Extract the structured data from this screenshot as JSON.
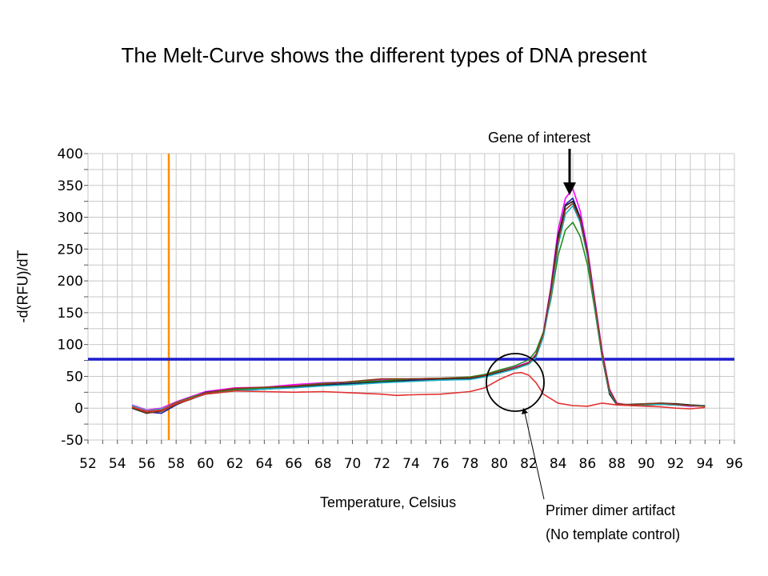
{
  "slide": {
    "title": "The Melt-Curve shows the different types of DNA present"
  },
  "annotations": {
    "gene_of_interest": "Gene of interest",
    "primer_dimer_line1": "Primer dimer artifact",
    "primer_dimer_line2": "(No template control)"
  },
  "colors": {
    "threshold": "#1f1fd0",
    "marker": "#ff8c00",
    "grid": "#c8c8c8",
    "ntc": "#e23030"
  },
  "chart_data": {
    "type": "line",
    "xlabel": "Temperature, Celsius",
    "ylabel": "-d(RFU)/dT",
    "xlim": [
      52,
      96
    ],
    "ylim": [
      -50,
      400
    ],
    "xticks": [
      52,
      54,
      56,
      58,
      60,
      62,
      64,
      66,
      68,
      70,
      72,
      74,
      76,
      78,
      80,
      82,
      84,
      86,
      88,
      90,
      92,
      94,
      96
    ],
    "yticks": [
      400,
      350,
      300,
      250,
      200,
      150,
      100,
      50,
      0,
      -50
    ],
    "grid": true,
    "threshold_y": 77,
    "marker_x": 57.5,
    "series": [
      {
        "color": "#ff00ff",
        "x": [
          55,
          56,
          57,
          58,
          59,
          60,
          62,
          64,
          66,
          68,
          70,
          72,
          74,
          76,
          78,
          79,
          80,
          81,
          82,
          82.5,
          83,
          83.5,
          84,
          84.5,
          85,
          85.5,
          86,
          86.5,
          87,
          87.5,
          88,
          89,
          90,
          91,
          92,
          93,
          94
        ],
        "y": [
          5,
          -3,
          0,
          10,
          18,
          26,
          32,
          33,
          37,
          40,
          41,
          44,
          45,
          46,
          48,
          52,
          58,
          64,
          72,
          85,
          120,
          190,
          280,
          330,
          345,
          310,
          250,
          170,
          90,
          30,
          8,
          4,
          5,
          6,
          5,
          3,
          4
        ]
      },
      {
        "color": "#1f1fa0",
        "x": [
          55,
          56,
          57,
          58,
          59,
          60,
          62,
          64,
          66,
          68,
          70,
          72,
          74,
          76,
          78,
          79,
          80,
          81,
          82,
          82.5,
          83,
          83.5,
          84,
          84.5,
          85,
          85.5,
          86,
          86.5,
          87,
          87.5,
          88,
          89,
          90,
          91,
          92,
          93,
          94
        ],
        "y": [
          3,
          -6,
          -8,
          5,
          15,
          25,
          30,
          31,
          34,
          37,
          39,
          41,
          44,
          44,
          46,
          50,
          56,
          62,
          70,
          82,
          115,
          180,
          265,
          320,
          330,
          300,
          245,
          165,
          85,
          25,
          6,
          5,
          6,
          7,
          6,
          4,
          4
        ]
      },
      {
        "color": "#1a1a1a",
        "x": [
          55,
          56,
          57,
          58,
          59,
          60,
          62,
          64,
          66,
          68,
          70,
          72,
          74,
          76,
          78,
          79,
          80,
          81,
          82,
          82.5,
          83,
          83.5,
          84,
          84.5,
          85,
          85.5,
          86,
          86.5,
          87,
          87.5,
          88,
          89,
          90,
          91,
          92,
          93,
          94
        ],
        "y": [
          0,
          -8,
          -4,
          8,
          16,
          23,
          28,
          30,
          33,
          36,
          38,
          42,
          43,
          45,
          47,
          51,
          57,
          63,
          71,
          83,
          118,
          185,
          270,
          318,
          325,
          298,
          240,
          160,
          80,
          22,
          5,
          6,
          7,
          8,
          7,
          5,
          4
        ]
      },
      {
        "color": "#228b22",
        "x": [
          55,
          56,
          57,
          58,
          59,
          60,
          62,
          64,
          66,
          68,
          70,
          72,
          74,
          76,
          78,
          79,
          80,
          81,
          82,
          82.5,
          83,
          83.5,
          84,
          84.5,
          85,
          85.5,
          86,
          86.5,
          87,
          87.5,
          88,
          89,
          90,
          91,
          92,
          93,
          94
        ],
        "y": [
          2,
          -5,
          -2,
          9,
          17,
          24,
          29,
          32,
          35,
          39,
          41,
          43,
          46,
          47,
          49,
          53,
          60,
          66,
          76,
          90,
          120,
          170,
          240,
          280,
          292,
          270,
          225,
          155,
          80,
          25,
          6,
          4,
          5,
          6,
          5,
          4,
          3
        ]
      },
      {
        "color": "#20b2c8",
        "x": [
          55,
          56,
          57,
          58,
          59,
          60,
          62,
          64,
          66,
          68,
          70,
          72,
          74,
          76,
          78,
          79,
          80,
          81,
          82,
          82.5,
          83,
          83.5,
          84,
          84.5,
          85,
          85.5,
          86,
          86.5,
          87,
          87.5,
          88,
          89,
          90,
          91,
          92,
          93,
          94
        ],
        "y": [
          4,
          -4,
          -1,
          7,
          14,
          22,
          27,
          30,
          32,
          35,
          37,
          40,
          42,
          44,
          45,
          49,
          55,
          61,
          69,
          80,
          112,
          175,
          255,
          305,
          318,
          292,
          238,
          162,
          84,
          26,
          6,
          5,
          6,
          6,
          5,
          4,
          4
        ]
      },
      {
        "color": "#8b3a1a",
        "x": [
          55,
          56,
          57,
          58,
          59,
          60,
          62,
          64,
          66,
          68,
          70,
          72,
          74,
          76,
          78,
          79,
          80,
          81,
          82,
          82.5,
          83,
          83.5,
          84,
          84.5,
          85,
          85.5,
          86,
          86.5,
          87,
          87.5,
          88,
          89,
          90,
          91,
          92,
          93,
          94
        ],
        "y": [
          1,
          -7,
          -5,
          6,
          14,
          24,
          31,
          33,
          35,
          38,
          42,
          46,
          46,
          47,
          48,
          52,
          58,
          63,
          71,
          84,
          118,
          182,
          262,
          312,
          322,
          296,
          242,
          166,
          86,
          28,
          7,
          5,
          7,
          8,
          6,
          4,
          3
        ]
      },
      {
        "color": "#e23030",
        "x": [
          55,
          56,
          57,
          58,
          59,
          60,
          62,
          64,
          66,
          68,
          70,
          72,
          73,
          74,
          76,
          78,
          79,
          80,
          81,
          81.5,
          82,
          82.5,
          83,
          84,
          85,
          86,
          87,
          88,
          89,
          90,
          91,
          92,
          93,
          94
        ],
        "y": [
          2,
          -5,
          -3,
          8,
          15,
          22,
          27,
          26,
          25,
          26,
          24,
          22,
          20,
          21,
          22,
          26,
          32,
          45,
          55,
          56,
          52,
          40,
          22,
          8,
          4,
          3,
          8,
          5,
          4,
          3,
          2,
          0,
          -1,
          1
        ]
      }
    ]
  }
}
